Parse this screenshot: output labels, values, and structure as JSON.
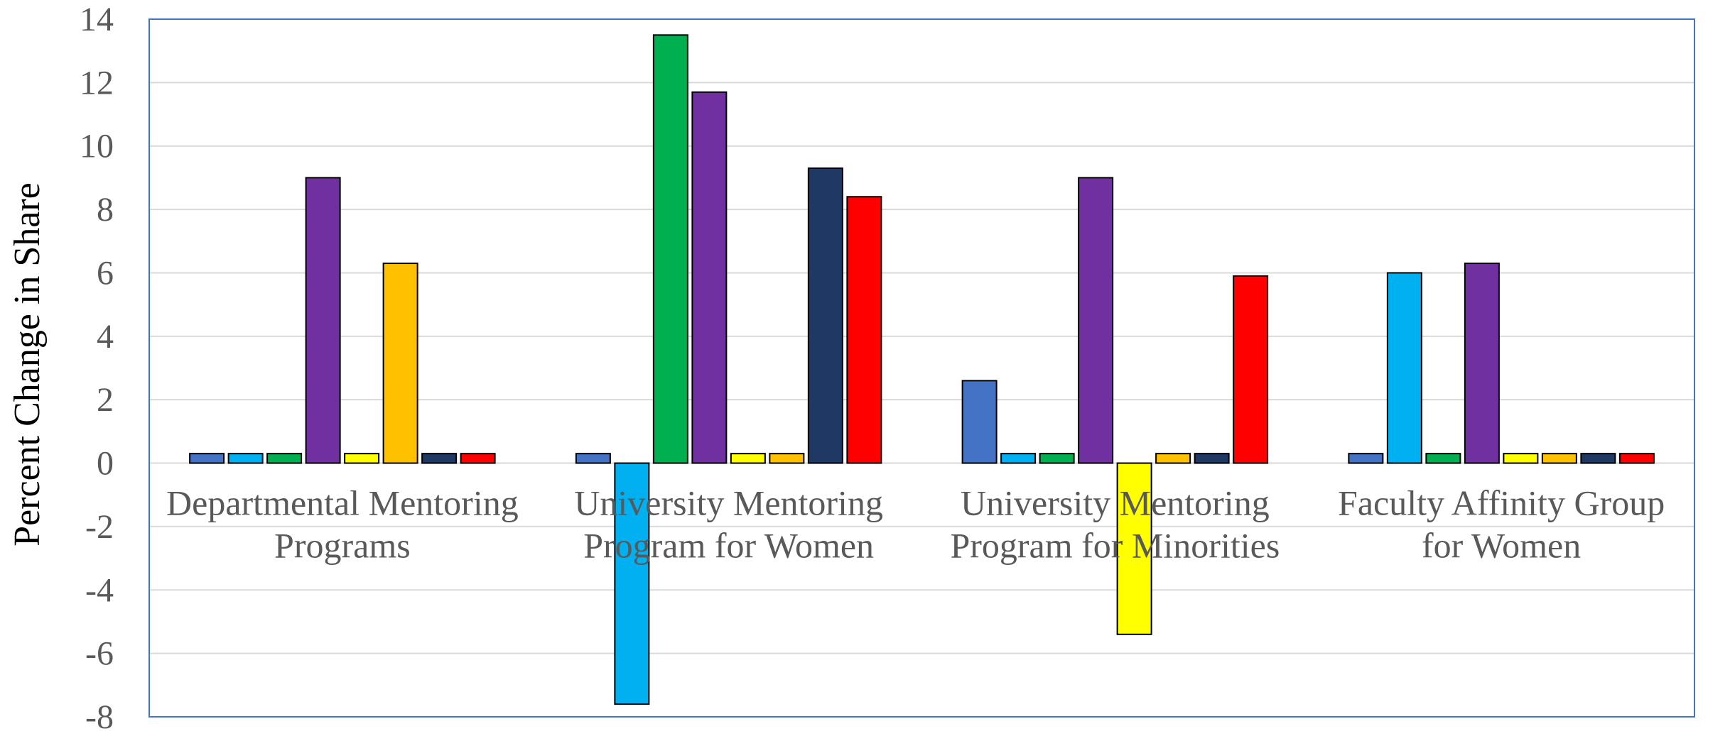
{
  "chart_data": {
    "type": "bar",
    "title": "",
    "xlabel": "",
    "ylabel": "Percent Change in Share",
    "ylim": [
      -8,
      14
    ],
    "ytick_step": 2,
    "grid": true,
    "legend": "none",
    "categories": [
      [
        "Departmental Mentoring",
        "Programs"
      ],
      [
        "University Mentoring",
        "Program for Women"
      ],
      [
        "University Mentoring",
        "Program for Minorities"
      ],
      [
        "Faculty Affinity Group",
        "for Women"
      ]
    ],
    "series": [
      {
        "color": "#4472C4",
        "values": [
          0.3,
          0.3,
          2.6,
          0.3
        ]
      },
      {
        "color": "#00B0F0",
        "values": [
          0.3,
          -7.6,
          0.3,
          6.0
        ]
      },
      {
        "color": "#00B050",
        "values": [
          0.3,
          13.5,
          0.3,
          0.3
        ]
      },
      {
        "color": "#7030A0",
        "values": [
          9.0,
          11.7,
          9.0,
          6.3
        ]
      },
      {
        "color": "#FFFF00",
        "values": [
          0.3,
          0.3,
          -5.4,
          0.3
        ]
      },
      {
        "color": "#FFC000",
        "values": [
          6.3,
          0.3,
          0.3,
          0.3
        ]
      },
      {
        "color": "#203864",
        "values": [
          0.3,
          9.3,
          0.3,
          0.3
        ]
      },
      {
        "color": "#FF0000",
        "values": [
          0.3,
          8.4,
          5.9,
          0.3
        ]
      }
    ],
    "colors": {
      "axis_frame": "#4472C4",
      "grid": "#D9D9D9",
      "bar_stroke": "#000000"
    }
  }
}
